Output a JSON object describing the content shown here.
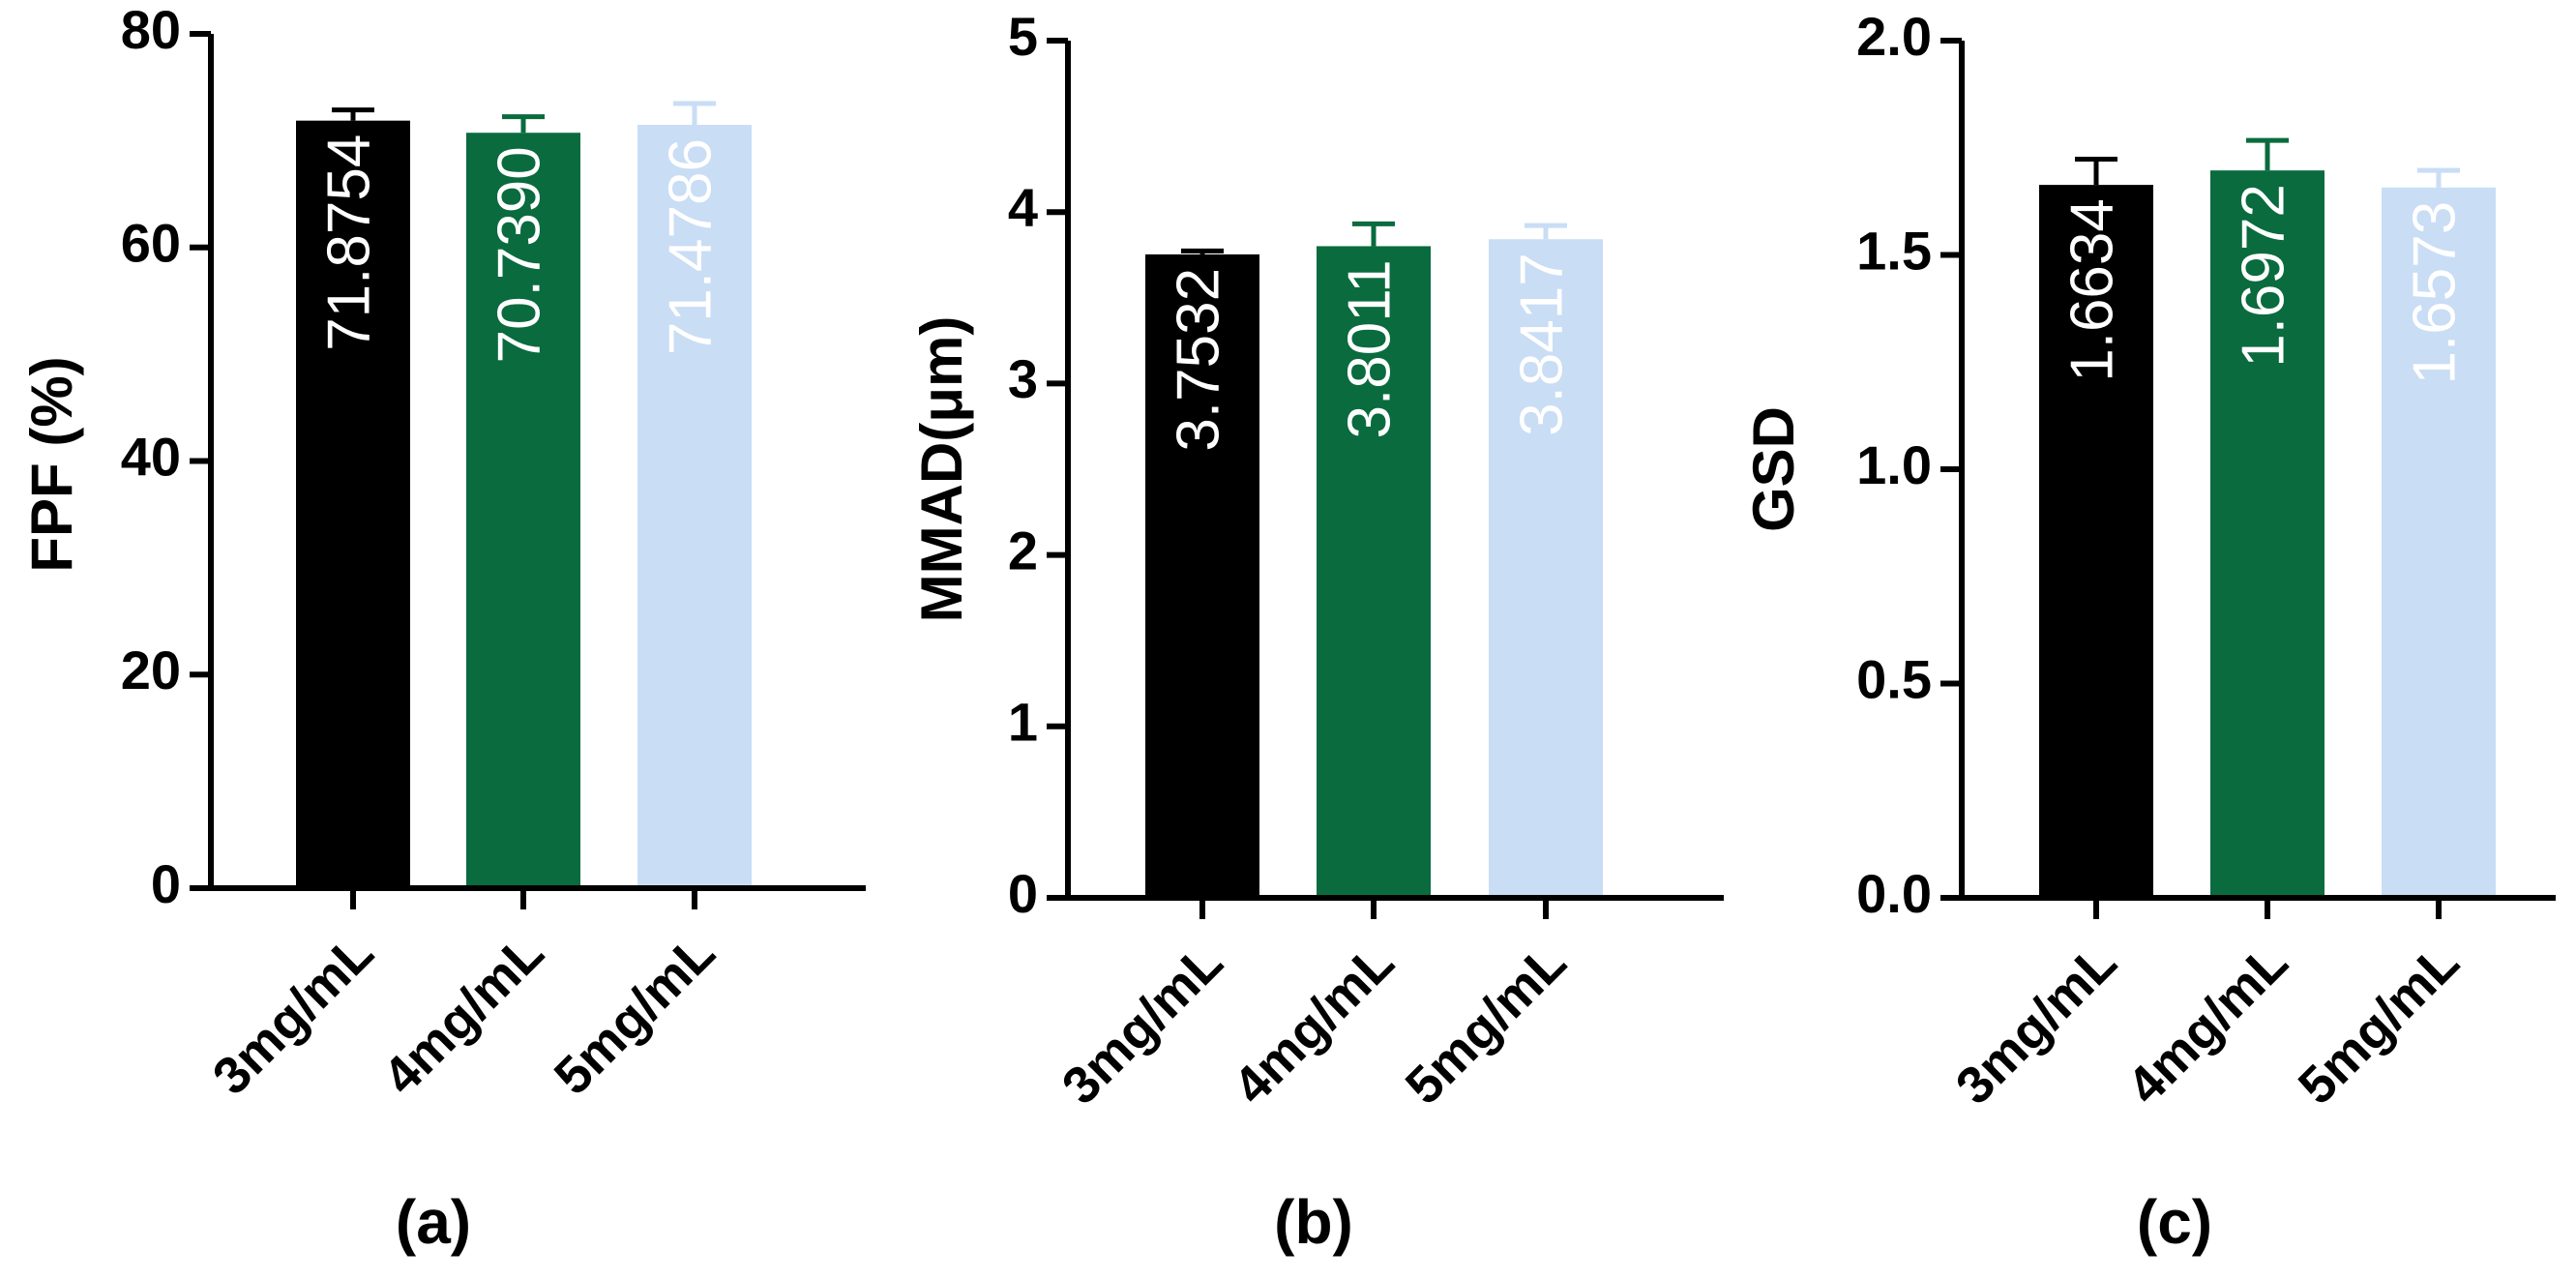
{
  "chart_data": [
    {
      "type": "bar",
      "panel_label": "(a)",
      "ylabel": "FPF (%)",
      "xlabel": "",
      "categories": [
        "3mg/mL",
        "4mg/mL",
        "5mg/mL"
      ],
      "values": [
        71.8754,
        70.739,
        71.4786
      ],
      "value_labels": [
        "71.8754",
        "70.7390",
        "71.4786"
      ],
      "errors": [
        1.0,
        1.5,
        2.0
      ],
      "ylim": [
        0,
        80
      ],
      "yticks": [
        0,
        20,
        40,
        60,
        80
      ],
      "ytick_labels": [
        "0",
        "20",
        "40",
        "60",
        "80"
      ],
      "bar_colors": [
        "#000000",
        "#0a6b3e",
        "#c9ddf5"
      ],
      "label_colors": [
        "#ffffff",
        "#ffffff",
        "#ffffff"
      ],
      "grid": false
    },
    {
      "type": "bar",
      "panel_label": "(b)",
      "ylabel": "MMAD(μm)",
      "xlabel": "",
      "categories": [
        "3mg/mL",
        "4mg/mL",
        "5mg/mL"
      ],
      "values": [
        3.7532,
        3.8011,
        3.8417
      ],
      "value_labels": [
        "3.7532",
        "3.8011",
        "3.8417"
      ],
      "errors": [
        0.02,
        0.13,
        0.08
      ],
      "ylim": [
        0,
        5
      ],
      "yticks": [
        0,
        1,
        2,
        3,
        4,
        5
      ],
      "ytick_labels": [
        "0",
        "1",
        "2",
        "3",
        "4",
        "5"
      ],
      "bar_colors": [
        "#000000",
        "#0a6b3e",
        "#c9ddf5"
      ],
      "label_colors": [
        "#ffffff",
        "#ffffff",
        "#ffffff"
      ],
      "grid": false
    },
    {
      "type": "bar",
      "panel_label": "(c)",
      "ylabel": "GSD",
      "xlabel": "",
      "categories": [
        "3mg/mL",
        "4mg/mL",
        "5mg/mL"
      ],
      "values": [
        1.6634,
        1.6972,
        1.6573
      ],
      "value_labels": [
        "1.6634",
        "1.6972",
        "1.6573"
      ],
      "errors": [
        0.06,
        0.07,
        0.04
      ],
      "ylim": [
        0,
        2.0
      ],
      "yticks": [
        0,
        0.5,
        1.0,
        1.5,
        2.0
      ],
      "ytick_labels": [
        "0.0",
        "0.5",
        "1.0",
        "1.5",
        "2.0"
      ],
      "bar_colors": [
        "#000000",
        "#0a6b3e",
        "#c9ddf5"
      ],
      "label_colors": [
        "#ffffff",
        "#ffffff",
        "#ffffff"
      ],
      "grid": false
    }
  ]
}
